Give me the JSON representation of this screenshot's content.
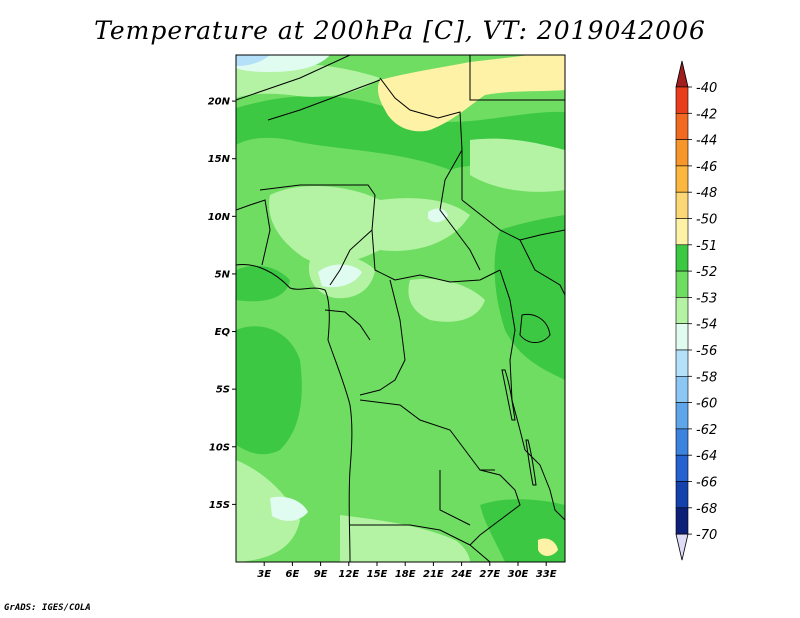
{
  "title": "Temperature at 200hPa [C], VT: 2019042006",
  "credit": "GrADS: IGES/COLA",
  "map": {
    "lon_range": [
      0,
      35
    ],
    "lat_range": [
      -20,
      24
    ],
    "lat_ticks": [
      {
        "lat": 20,
        "label": "20N"
      },
      {
        "lat": 15,
        "label": "15N"
      },
      {
        "lat": 10,
        "label": "10N"
      },
      {
        "lat": 5,
        "label": "5N"
      },
      {
        "lat": 0,
        "label": "EQ"
      },
      {
        "lat": -5,
        "label": "5S"
      },
      {
        "lat": -10,
        "label": "10S"
      },
      {
        "lat": -15,
        "label": "15S"
      }
    ],
    "lon_ticks": [
      {
        "lon": 3,
        "label": "3E"
      },
      {
        "lon": 6,
        "label": "6E"
      },
      {
        "lon": 9,
        "label": "9E"
      },
      {
        "lon": 12,
        "label": "12E"
      },
      {
        "lon": 15,
        "label": "15E"
      },
      {
        "lon": 18,
        "label": "18E"
      },
      {
        "lon": 21,
        "label": "21E"
      },
      {
        "lon": 24,
        "label": "24E"
      },
      {
        "lon": 27,
        "label": "27E"
      },
      {
        "lon": 30,
        "label": "30E"
      },
      {
        "lon": 33,
        "label": "33E"
      }
    ]
  },
  "colorbar": {
    "levels": [
      {
        "label": "-40",
        "color": "#a01e1e"
      },
      {
        "label": "-42",
        "color": "#e83e1c"
      },
      {
        "label": "-44",
        "color": "#f26a22"
      },
      {
        "label": "-46",
        "color": "#f7962a"
      },
      {
        "label": "-48",
        "color": "#fbb73f"
      },
      {
        "label": "-50",
        "color": "#fcd775"
      },
      {
        "label": "-51",
        "color": "#fdf2a6"
      },
      {
        "label": "-52",
        "color": "#3dc843"
      },
      {
        "label": "-53",
        "color": "#6fdd62"
      },
      {
        "label": "-54",
        "color": "#b4f3a4"
      },
      {
        "label": "-56",
        "color": "#e0fbef"
      },
      {
        "label": "-58",
        "color": "#b5e0fa"
      },
      {
        "label": "-60",
        "color": "#8cc6f3"
      },
      {
        "label": "-62",
        "color": "#5fa5ea"
      },
      {
        "label": "-64",
        "color": "#3c83e0"
      },
      {
        "label": "-66",
        "color": "#2561cf"
      },
      {
        "label": "-68",
        "color": "#1541ac"
      },
      {
        "label": "-70",
        "color": "#0d2077"
      }
    ],
    "top_color": "#a01e1e",
    "bottom_color": "#dfdcf8"
  }
}
